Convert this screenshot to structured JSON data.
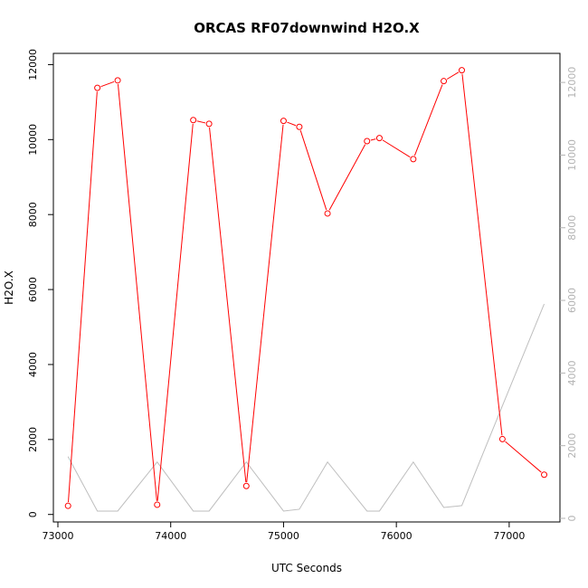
{
  "chart_data": {
    "type": "line",
    "title": "ORCAS RF07downwind H2O.X",
    "xlabel": "UTC Seconds",
    "ylabel": "H2O.X",
    "xlim": [
      72960,
      77450
    ],
    "ylim": [
      -200,
      12300
    ],
    "y2lim": [
      -100,
      12800
    ],
    "x_ticks": [
      73000,
      74000,
      75000,
      76000,
      77000
    ],
    "y_ticks": [
      0,
      2000,
      4000,
      6000,
      8000,
      10000,
      12000
    ],
    "y2_ticks": [
      0,
      2000,
      4000,
      6000,
      8000,
      10000,
      12000
    ],
    "grid": false,
    "colors": {
      "primary": "#ff0000",
      "secondary": "#bebebe",
      "axis": "#000000",
      "right_axis": "#b3b3b3"
    },
    "series": [
      {
        "axis": "left",
        "style": "line-with-open-circles",
        "x": [
          73090,
          73350,
          73530,
          73880,
          74200,
          74340,
          74670,
          75000,
          75140,
          75390,
          75740,
          75850,
          76150,
          76420,
          76580,
          76940,
          77310
        ],
        "y": [
          230,
          11380,
          11580,
          260,
          10520,
          10420,
          760,
          10500,
          10340,
          8030,
          9960,
          10040,
          9480,
          11560,
          11850,
          2010,
          1060
        ]
      },
      {
        "axis": "right",
        "style": "line",
        "x": [
          73090,
          73350,
          73530,
          73880,
          74200,
          74340,
          74670,
          75000,
          75140,
          75390,
          75740,
          75850,
          76150,
          76420,
          76580,
          76940,
          77310
        ],
        "y": [
          1700,
          200,
          200,
          1550,
          200,
          200,
          1550,
          200,
          250,
          1550,
          200,
          200,
          1550,
          300,
          350,
          3100,
          5900
        ]
      }
    ]
  }
}
